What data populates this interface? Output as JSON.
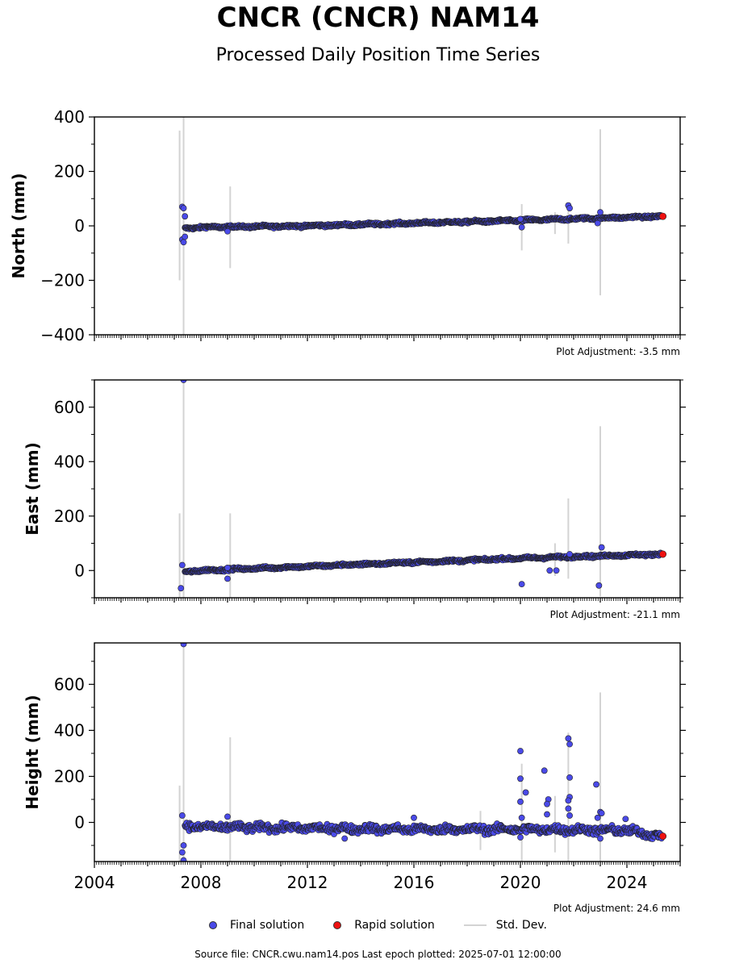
{
  "title": "CNCR (CNCR) NAM14",
  "subtitle": "Processed Daily Position Time Series",
  "legend": {
    "final": "Final solution",
    "rapid": "Rapid solution",
    "std": "Std. Dev."
  },
  "footer": "Source file: CNCR.cwu.nam14.pos  Last epoch plotted: 2025-07-01 12:00:00",
  "colors": {
    "final": "#4a4ae8",
    "rapid": "#ee1111",
    "std": "#d3d3d3",
    "edge": "#222222"
  },
  "chart_data": [
    {
      "type": "scatter",
      "ylabel": "North (mm)",
      "adjustment": "Plot Adjustment: -3.5 mm",
      "xlim": [
        2004,
        2026
      ],
      "ylim": [
        -400,
        400
      ],
      "yticks": [
        -400,
        -200,
        0,
        200,
        400
      ],
      "xticks": [
        2004,
        2008,
        2012,
        2016,
        2020,
        2024
      ],
      "show_xtick_labels": false,
      "trend": [
        [
          2007.4,
          -10
        ],
        [
          2008,
          -5
        ],
        [
          2012,
          0
        ],
        [
          2016,
          10
        ],
        [
          2020,
          20
        ],
        [
          2025.3,
          35
        ]
      ],
      "noise": 4,
      "outliers": [
        [
          2007.3,
          70
        ],
        [
          2007.35,
          65
        ],
        [
          2007.4,
          35
        ],
        [
          2007.3,
          -50
        ],
        [
          2007.35,
          -60
        ],
        [
          2007.4,
          -40
        ],
        [
          2009.0,
          -20
        ],
        [
          2020.0,
          25
        ],
        [
          2020.05,
          -5
        ],
        [
          2021.8,
          75
        ],
        [
          2021.85,
          65
        ],
        [
          2023.0,
          50
        ],
        [
          2022.9,
          10
        ]
      ],
      "stddev": [
        [
          2007.2,
          -200,
          350
        ],
        [
          2007.35,
          -400,
          400
        ],
        [
          2009.1,
          -155,
          145
        ],
        [
          2020.05,
          -90,
          80
        ],
        [
          2021.3,
          -30,
          50
        ],
        [
          2021.8,
          -65,
          70
        ],
        [
          2023.0,
          -255,
          355
        ]
      ],
      "rapid": [
        [
          2025.35,
          35
        ]
      ]
    },
    {
      "type": "scatter",
      "ylabel": "East (mm)",
      "adjustment": "Plot Adjustment: -21.1 mm",
      "xlim": [
        2004,
        2026
      ],
      "ylim": [
        -100,
        700
      ],
      "yticks": [
        0,
        200,
        400,
        600
      ],
      "xticks": [
        2004,
        2008,
        2012,
        2016,
        2020,
        2024
      ],
      "show_xtick_labels": false,
      "trend": [
        [
          2007.4,
          -5
        ],
        [
          2008,
          0
        ],
        [
          2012,
          15
        ],
        [
          2016,
          30
        ],
        [
          2020,
          45
        ],
        [
          2025.3,
          60
        ]
      ],
      "noise": 4,
      "outliers": [
        [
          2007.35,
          700
        ],
        [
          2007.3,
          20
        ],
        [
          2007.25,
          -65
        ],
        [
          2009.0,
          -30
        ],
        [
          2009.0,
          10
        ],
        [
          2020.05,
          -50
        ],
        [
          2021.1,
          0
        ],
        [
          2021.35,
          0
        ],
        [
          2021.85,
          60
        ],
        [
          2022.95,
          -55
        ],
        [
          2023.05,
          85
        ]
      ],
      "stddev": [
        [
          2007.2,
          -100,
          210
        ],
        [
          2007.35,
          -100,
          700
        ],
        [
          2009.1,
          -100,
          210
        ],
        [
          2021.3,
          -20,
          100
        ],
        [
          2021.8,
          -30,
          265
        ],
        [
          2023.0,
          -95,
          530
        ]
      ],
      "rapid": [
        [
          2025.35,
          60
        ]
      ]
    },
    {
      "type": "scatter",
      "ylabel": "Height (mm)",
      "adjustment": "Plot Adjustment: 24.6 mm",
      "xlim": [
        2004,
        2026
      ],
      "ylim": [
        -170,
        780
      ],
      "yticks": [
        0,
        200,
        400,
        600
      ],
      "xticks": [
        2004,
        2008,
        2012,
        2016,
        2020,
        2024
      ],
      "show_xtick_labels": true,
      "trend": [
        [
          2007.4,
          -15
        ],
        [
          2008,
          -20
        ],
        [
          2012,
          -25
        ],
        [
          2016,
          -30
        ],
        [
          2020,
          -30
        ],
        [
          2024,
          -35
        ],
        [
          2025.3,
          -60
        ]
      ],
      "noise": 14,
      "outliers": [
        [
          2007.35,
          775
        ],
        [
          2007.3,
          30
        ],
        [
          2007.35,
          -100
        ],
        [
          2007.3,
          -130
        ],
        [
          2007.35,
          -165
        ],
        [
          2009.0,
          25
        ],
        [
          2013.4,
          -70
        ],
        [
          2016.0,
          20
        ],
        [
          2020.0,
          310
        ],
        [
          2020.0,
          190
        ],
        [
          2020.2,
          130
        ],
        [
          2020.0,
          90
        ],
        [
          2020.05,
          20
        ],
        [
          2020.0,
          -65
        ],
        [
          2020.9,
          225
        ],
        [
          2021.05,
          100
        ],
        [
          2021.0,
          80
        ],
        [
          2021.0,
          35
        ],
        [
          2021.8,
          365
        ],
        [
          2021.85,
          340
        ],
        [
          2021.85,
          195
        ],
        [
          2021.85,
          110
        ],
        [
          2021.8,
          95
        ],
        [
          2021.8,
          60
        ],
        [
          2021.85,
          30
        ],
        [
          2022.85,
          165
        ],
        [
          2023.0,
          45
        ],
        [
          2023.05,
          40
        ],
        [
          2022.9,
          20
        ],
        [
          2023.95,
          15
        ],
        [
          2023.0,
          -70
        ]
      ],
      "stddev": [
        [
          2007.2,
          -170,
          160
        ],
        [
          2007.35,
          -170,
          780
        ],
        [
          2009.1,
          -170,
          370
        ],
        [
          2018.5,
          -120,
          50
        ],
        [
          2020.05,
          -170,
          255
        ],
        [
          2021.3,
          -130,
          115
        ],
        [
          2021.8,
          -170,
          390
        ],
        [
          2023.0,
          -170,
          565
        ]
      ],
      "rapid": [
        [
          2025.35,
          -60
        ]
      ]
    }
  ]
}
